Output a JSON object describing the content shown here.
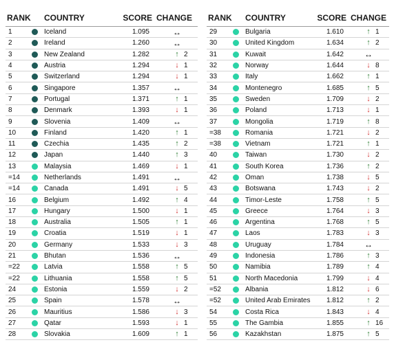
{
  "headers": {
    "rank": "RANK",
    "country": "COUNTRY",
    "score": "SCORE",
    "change": "CHANGE"
  },
  "colors": {
    "dark": "#1f5a57",
    "light": "#2bd3a6",
    "up": "#2e7d32",
    "down": "#d32f2f"
  },
  "left": [
    {
      "rank": "1",
      "country": "Iceland",
      "score": "1.095",
      "dir": "same",
      "change": "",
      "dot": "dark"
    },
    {
      "rank": "2",
      "country": "Ireland",
      "score": "1.260",
      "dir": "same",
      "change": "",
      "dot": "dark"
    },
    {
      "rank": "3",
      "country": "New Zealand",
      "score": "1.282",
      "dir": "up",
      "change": "2",
      "dot": "dark"
    },
    {
      "rank": "4",
      "country": "Austria",
      "score": "1.294",
      "dir": "down",
      "change": "1",
      "dot": "dark"
    },
    {
      "rank": "5",
      "country": "Switzerland",
      "score": "1.294",
      "dir": "down",
      "change": "1",
      "dot": "dark"
    },
    {
      "rank": "6",
      "country": "Singapore",
      "score": "1.357",
      "dir": "same",
      "change": "",
      "dot": "dark"
    },
    {
      "rank": "7",
      "country": "Portugal",
      "score": "1.371",
      "dir": "up",
      "change": "1",
      "dot": "dark"
    },
    {
      "rank": "8",
      "country": "Denmark",
      "score": "1.393",
      "dir": "down",
      "change": "1",
      "dot": "dark"
    },
    {
      "rank": "9",
      "country": "Slovenia",
      "score": "1.409",
      "dir": "same",
      "change": "",
      "dot": "dark"
    },
    {
      "rank": "10",
      "country": "Finland",
      "score": "1.420",
      "dir": "up",
      "change": "1",
      "dot": "dark"
    },
    {
      "rank": "11",
      "country": "Czechia",
      "score": "1.435",
      "dir": "up",
      "change": "2",
      "dot": "dark"
    },
    {
      "rank": "12",
      "country": "Japan",
      "score": "1.440",
      "dir": "up",
      "change": "3",
      "dot": "dark"
    },
    {
      "rank": "13",
      "country": "Malaysia",
      "score": "1.469",
      "dir": "down",
      "change": "1",
      "dot": "light"
    },
    {
      "rank": "=14",
      "country": "Netherlands",
      "score": "1.491",
      "dir": "same",
      "change": "",
      "dot": "light"
    },
    {
      "rank": "=14",
      "country": "Canada",
      "score": "1.491",
      "dir": "down",
      "change": "5",
      "dot": "light"
    },
    {
      "rank": "16",
      "country": "Belgium",
      "score": "1.492",
      "dir": "up",
      "change": "4",
      "dot": "light"
    },
    {
      "rank": "17",
      "country": "Hungary",
      "score": "1.500",
      "dir": "down",
      "change": "1",
      "dot": "light"
    },
    {
      "rank": "18",
      "country": "Australia",
      "score": "1.505",
      "dir": "up",
      "change": "1",
      "dot": "light"
    },
    {
      "rank": "19",
      "country": "Croatia",
      "score": "1.519",
      "dir": "down",
      "change": "1",
      "dot": "light"
    },
    {
      "rank": "20",
      "country": "Germany",
      "score": "1.533",
      "dir": "down",
      "change": "3",
      "dot": "light"
    },
    {
      "rank": "21",
      "country": "Bhutan",
      "score": "1.536",
      "dir": "same",
      "change": "",
      "dot": "light"
    },
    {
      "rank": "=22",
      "country": "Latvia",
      "score": "1.558",
      "dir": "up",
      "change": "5",
      "dot": "light"
    },
    {
      "rank": "=22",
      "country": "Lithuania",
      "score": "1.558",
      "dir": "up",
      "change": "5",
      "dot": "light"
    },
    {
      "rank": "24",
      "country": "Estonia",
      "score": "1.559",
      "dir": "down",
      "change": "2",
      "dot": "light"
    },
    {
      "rank": "25",
      "country": "Spain",
      "score": "1.578",
      "dir": "same",
      "change": "",
      "dot": "light"
    },
    {
      "rank": "26",
      "country": "Mauritius",
      "score": "1.586",
      "dir": "down",
      "change": "3",
      "dot": "light"
    },
    {
      "rank": "27",
      "country": "Qatar",
      "score": "1.593",
      "dir": "down",
      "change": "1",
      "dot": "light"
    },
    {
      "rank": "28",
      "country": "Slovakia",
      "score": "1.609",
      "dir": "up",
      "change": "1",
      "dot": "light"
    }
  ],
  "right": [
    {
      "rank": "29",
      "country": "Bulgaria",
      "score": "1.610",
      "dir": "up",
      "change": "1",
      "dot": "light"
    },
    {
      "rank": "30",
      "country": "United Kingdom",
      "score": "1.634",
      "dir": "up",
      "change": "2",
      "dot": "light"
    },
    {
      "rank": "31",
      "country": "Kuwait",
      "score": "1.642",
      "dir": "same",
      "change": "",
      "dot": "light"
    },
    {
      "rank": "32",
      "country": "Norway",
      "score": "1.644",
      "dir": "down",
      "change": "8",
      "dot": "light"
    },
    {
      "rank": "33",
      "country": "Italy",
      "score": "1.662",
      "dir": "up",
      "change": "1",
      "dot": "light"
    },
    {
      "rank": "34",
      "country": "Montenegro",
      "score": "1.685",
      "dir": "up",
      "change": "5",
      "dot": "light"
    },
    {
      "rank": "35",
      "country": "Sweden",
      "score": "1.709",
      "dir": "down",
      "change": "2",
      "dot": "light"
    },
    {
      "rank": "36",
      "country": "Poland",
      "score": "1.713",
      "dir": "down",
      "change": "1",
      "dot": "light"
    },
    {
      "rank": "37",
      "country": "Mongolia",
      "score": "1.719",
      "dir": "up",
      "change": "8",
      "dot": "light"
    },
    {
      "rank": "=38",
      "country": "Romania",
      "score": "1.721",
      "dir": "down",
      "change": "2",
      "dot": "light"
    },
    {
      "rank": "=38",
      "country": "Vietnam",
      "score": "1.721",
      "dir": "up",
      "change": "1",
      "dot": "light"
    },
    {
      "rank": "40",
      "country": "Taiwan",
      "score": "1.730",
      "dir": "down",
      "change": "2",
      "dot": "light"
    },
    {
      "rank": "41",
      "country": "South Korea",
      "score": "1.736",
      "dir": "up",
      "change": "2",
      "dot": "light"
    },
    {
      "rank": "42",
      "country": "Oman",
      "score": "1.738",
      "dir": "down",
      "change": "5",
      "dot": "light"
    },
    {
      "rank": "43",
      "country": "Botswana",
      "score": "1.743",
      "dir": "down",
      "change": "2",
      "dot": "light"
    },
    {
      "rank": "44",
      "country": "Timor-Leste",
      "score": "1.758",
      "dir": "up",
      "change": "5",
      "dot": "light"
    },
    {
      "rank": "45",
      "country": "Greece",
      "score": "1.764",
      "dir": "down",
      "change": "3",
      "dot": "light"
    },
    {
      "rank": "46",
      "country": "Argentina",
      "score": "1.768",
      "dir": "up",
      "change": "5",
      "dot": "light"
    },
    {
      "rank": "47",
      "country": "Laos",
      "score": "1.783",
      "dir": "down",
      "change": "3",
      "dot": "light"
    },
    {
      "rank": "48",
      "country": "Uruguay",
      "score": "1.784",
      "dir": "same",
      "change": "",
      "dot": "light"
    },
    {
      "rank": "49",
      "country": "Indonesia",
      "score": "1.786",
      "dir": "up",
      "change": "3",
      "dot": "light"
    },
    {
      "rank": "50",
      "country": "Namibia",
      "score": "1.789",
      "dir": "up",
      "change": "4",
      "dot": "light"
    },
    {
      "rank": "51",
      "country": "North Macedonia",
      "score": "1.799",
      "dir": "down",
      "change": "4",
      "dot": "light"
    },
    {
      "rank": "=52",
      "country": "Albania",
      "score": "1.812",
      "dir": "down",
      "change": "6",
      "dot": "light"
    },
    {
      "rank": "=52",
      "country": "United Arab Emirates",
      "score": "1.812",
      "dir": "up",
      "change": "2",
      "dot": "light"
    },
    {
      "rank": "54",
      "country": "Costa Rica",
      "score": "1.843",
      "dir": "down",
      "change": "4",
      "dot": "light"
    },
    {
      "rank": "55",
      "country": "The Gambia",
      "score": "1.855",
      "dir": "up",
      "change": "16",
      "dot": "light"
    },
    {
      "rank": "56",
      "country": "Kazakhstan",
      "score": "1.875",
      "dir": "up",
      "change": "5",
      "dot": "light"
    }
  ]
}
